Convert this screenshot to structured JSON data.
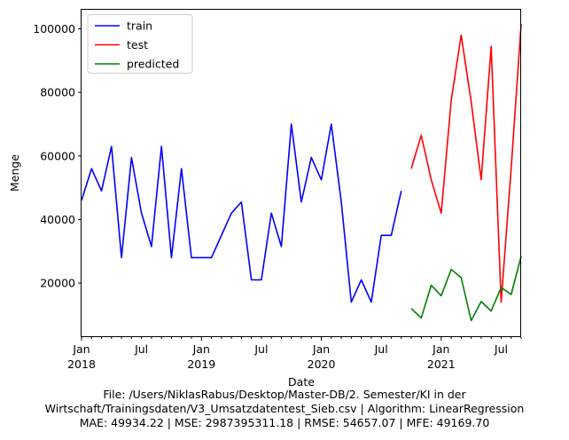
{
  "chart_data": {
    "type": "line",
    "xlabel": "Date",
    "ylabel": "Menge",
    "ylim": [
      3000,
      106000
    ],
    "yticks": [
      20000,
      40000,
      60000,
      80000,
      100000
    ],
    "xlim": [
      "2018-01",
      "2021-09"
    ],
    "grid": false,
    "legend": {
      "position": "top-left"
    },
    "x_ticks": [
      {
        "date": "2018-01",
        "label": "Jan",
        "year": "2018",
        "major": true
      },
      {
        "date": "2018-07",
        "label": "Jul",
        "major": false
      },
      {
        "date": "2019-01",
        "label": "Jan",
        "year": "2019",
        "major": true
      },
      {
        "date": "2019-07",
        "label": "Jul",
        "major": false
      },
      {
        "date": "2020-01",
        "label": "Jan",
        "year": "2020",
        "major": true
      },
      {
        "date": "2020-07",
        "label": "Jul",
        "major": false
      },
      {
        "date": "2021-01",
        "label": "Jan",
        "year": "2021",
        "major": true
      },
      {
        "date": "2021-07",
        "label": "Jul",
        "major": false
      }
    ],
    "series": [
      {
        "name": "train",
        "color": "#0000ff",
        "points": [
          [
            "2018-01",
            46000
          ],
          [
            "2018-02",
            56000
          ],
          [
            "2018-03",
            49000
          ],
          [
            "2018-04",
            63000
          ],
          [
            "2018-05",
            28000
          ],
          [
            "2018-06",
            59500
          ],
          [
            "2018-07",
            42000
          ],
          [
            "2018-08",
            31500
          ],
          [
            "2018-09",
            63000
          ],
          [
            "2018-10",
            28000
          ],
          [
            "2018-11",
            56000
          ],
          [
            "2018-12",
            28000
          ],
          [
            "2019-01",
            28000
          ],
          [
            "2019-02",
            28000
          ],
          [
            "2019-03",
            35000
          ],
          [
            "2019-04",
            42000
          ],
          [
            "2019-05",
            45500
          ],
          [
            "2019-06",
            21000
          ],
          [
            "2019-07",
            21000
          ],
          [
            "2019-08",
            42000
          ],
          [
            "2019-09",
            31500
          ],
          [
            "2019-10",
            70000
          ],
          [
            "2019-11",
            45500
          ],
          [
            "2019-12",
            59500
          ],
          [
            "2020-01",
            52500
          ],
          [
            "2020-02",
            70000
          ],
          [
            "2020-03",
            45500
          ],
          [
            "2020-04",
            14000
          ],
          [
            "2020-05",
            21000
          ],
          [
            "2020-06",
            14000
          ],
          [
            "2020-07",
            35000
          ],
          [
            "2020-08",
            35000
          ],
          [
            "2020-09",
            49000
          ]
        ]
      },
      {
        "name": "test",
        "color": "#ff0000",
        "points": [
          [
            "2020-10",
            56000
          ],
          [
            "2020-11",
            66500
          ],
          [
            "2020-12",
            52500
          ],
          [
            "2021-01",
            42000
          ],
          [
            "2021-02",
            77500
          ],
          [
            "2021-03",
            98000
          ],
          [
            "2021-04",
            77000
          ],
          [
            "2021-05",
            52500
          ],
          [
            "2021-06",
            94500
          ],
          [
            "2021-07",
            14000
          ],
          [
            "2021-08",
            56000
          ],
          [
            "2021-09",
            101500
          ]
        ]
      },
      {
        "name": "predicted",
        "color": "#008000",
        "points": [
          [
            "2020-10",
            12000
          ],
          [
            "2020-11",
            9000
          ],
          [
            "2020-12",
            19300
          ],
          [
            "2021-01",
            16000
          ],
          [
            "2021-02",
            24300
          ],
          [
            "2021-03",
            21700
          ],
          [
            "2021-04",
            8200
          ],
          [
            "2021-05",
            14200
          ],
          [
            "2021-06",
            11200
          ],
          [
            "2021-07",
            18600
          ],
          [
            "2021-08",
            16400
          ],
          [
            "2021-09",
            28400
          ]
        ]
      }
    ]
  },
  "caption": {
    "line1": "File: /Users/NiklasRabus/Desktop/Master-DB/2. Semester/KI in der",
    "line2": "Wirtschaft/Trainingsdaten/V3_Umsatzdatentest_Sieb.csv | Algorithm: LinearRegression",
    "line3": "MAE: 49934.22 | MSE: 2987395311.18 | RMSE: 54657.07 | MFE: 49169.70"
  }
}
